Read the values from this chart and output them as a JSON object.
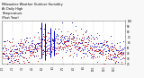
{
  "title": "Milwaukee Weather Outdoor Humidity At Daily High Temperature (Past Year)",
  "title_fontsize": 2.8,
  "background_color": "#f8f8f8",
  "plot_bg_color": "#ffffff",
  "grid_color": "#bbbbbb",
  "blue_color": "#0000cc",
  "red_color": "#cc0000",
  "ylim": [
    20,
    100
  ],
  "yticks": [
    20,
    30,
    40,
    50,
    60,
    70,
    80,
    90,
    100
  ],
  "n_points": 365,
  "seed": 42,
  "spike_indices": [
    118,
    128,
    143,
    155
  ],
  "spike_bottoms": [
    30,
    28,
    32,
    35
  ],
  "spike_tops": [
    98,
    95,
    88,
    82
  ],
  "month_starts": [
    0,
    31,
    59,
    90,
    120,
    151,
    181,
    212,
    243,
    273,
    304,
    334
  ],
  "month_labels": [
    "1/1",
    "2/1",
    "3/1",
    "4/1",
    "5/1",
    "6/1",
    "7/1",
    "8/1",
    "9/1",
    "10/1",
    "11/1",
    "12/1"
  ]
}
